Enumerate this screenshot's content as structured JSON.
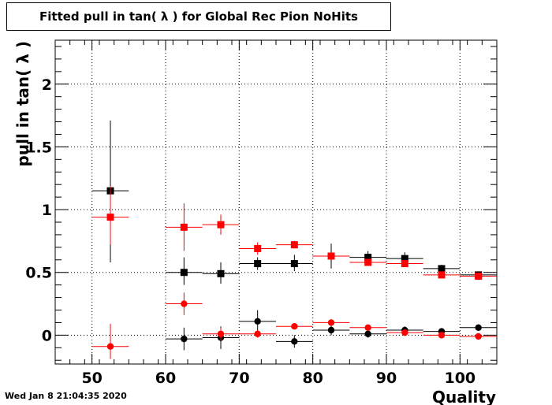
{
  "title": "Fitted pull in tan( λ ) for Global Rec Pion NoHits",
  "timestamp": "Wed Jan  8 21:04:35 2020",
  "chart_data": {
    "type": "scatter",
    "xlabel": "Quality",
    "ylabel": "pull in tan( λ )",
    "xlim": [
      45,
      105
    ],
    "ylim": [
      -0.23,
      2.35
    ],
    "x_ticks": [
      "50",
      "60",
      "70",
      "80",
      "90",
      "100"
    ],
    "y_ticks": [
      "0",
      "0.5",
      "1",
      "1.5",
      "2"
    ],
    "grid": true,
    "colors": {
      "black": "#000000",
      "red": "#ff0000"
    },
    "series": [
      {
        "color": "#000000",
        "marker": "square",
        "points": [
          {
            "x": 52.5,
            "y": 1.15,
            "xerr": 2.5,
            "yerr": [
              0.57,
              0.56
            ]
          },
          {
            "x": 62.5,
            "y": 0.5,
            "xerr": 2.5,
            "yerr": [
              0.1,
              0.12
            ]
          },
          {
            "x": 67.5,
            "y": 0.49,
            "xerr": 2.5,
            "yerr": [
              0.08,
              0.09
            ]
          },
          {
            "x": 72.5,
            "y": 0.57,
            "xerr": 2.5,
            "yerr": [
              0.05,
              0.05
            ]
          },
          {
            "x": 77.5,
            "y": 0.57,
            "xerr": 2.5,
            "yerr": [
              0.06,
              0.07
            ]
          },
          {
            "x": 82.5,
            "y": 0.63,
            "xerr": 2.5,
            "yerr": [
              0.1,
              0.1
            ]
          },
          {
            "x": 87.5,
            "y": 0.62,
            "xerr": 2.5,
            "yerr": [
              0.05,
              0.05
            ]
          },
          {
            "x": 92.5,
            "y": 0.61,
            "xerr": 2.5,
            "yerr": [
              0.04,
              0.05
            ]
          },
          {
            "x": 97.5,
            "y": 0.53,
            "xerr": 2.5,
            "yerr": [
              0.03,
              0.03
            ]
          },
          {
            "x": 102.5,
            "y": 0.48,
            "xerr": 2.5,
            "yerr": [
              0.02,
              0.02
            ]
          }
        ]
      },
      {
        "color": "#ff0000",
        "marker": "square",
        "points": [
          {
            "x": 52.5,
            "y": 0.94,
            "xerr": 2.5,
            "yerr": [
              0.22,
              0.25
            ]
          },
          {
            "x": 62.5,
            "y": 0.86,
            "xerr": 2.5,
            "yerr": [
              0.19,
              0.19
            ]
          },
          {
            "x": 67.5,
            "y": 0.88,
            "xerr": 2.5,
            "yerr": [
              0.08,
              0.08
            ]
          },
          {
            "x": 72.5,
            "y": 0.69,
            "xerr": 2.5,
            "yerr": [
              0.05,
              0.05
            ]
          },
          {
            "x": 77.5,
            "y": 0.72,
            "xerr": 2.5,
            "yerr": [
              0.03,
              0.03
            ]
          },
          {
            "x": 82.5,
            "y": 0.63,
            "xerr": 2.5,
            "yerr": [
              0.02,
              0.02
            ]
          },
          {
            "x": 87.5,
            "y": 0.58,
            "xerr": 2.5,
            "yerr": [
              0.02,
              0.02
            ]
          },
          {
            "x": 92.5,
            "y": 0.57,
            "xerr": 2.5,
            "yerr": [
              0.01,
              0.01
            ]
          },
          {
            "x": 97.5,
            "y": 0.48,
            "xerr": 2.5,
            "yerr": [
              0.01,
              0.01
            ]
          },
          {
            "x": 102.5,
            "y": 0.47,
            "xerr": 2.5,
            "yerr": [
              0.01,
              0.01
            ]
          }
        ]
      },
      {
        "color": "#000000",
        "marker": "circle",
        "points": [
          {
            "x": 62.5,
            "y": -0.03,
            "xerr": 2.5,
            "yerr": [
              0.09,
              0.09
            ]
          },
          {
            "x": 67.5,
            "y": -0.02,
            "xerr": 2.5,
            "yerr": [
              0.09,
              0.09
            ]
          },
          {
            "x": 72.5,
            "y": 0.11,
            "xerr": 2.5,
            "yerr": [
              0.09,
              0.09
            ]
          },
          {
            "x": 77.5,
            "y": -0.05,
            "xerr": 2.5,
            "yerr": [
              0.05,
              0.05
            ]
          },
          {
            "x": 82.5,
            "y": 0.04,
            "xerr": 2.5,
            "yerr": [
              0.04,
              0.04
            ]
          },
          {
            "x": 87.5,
            "y": 0.01,
            "xerr": 2.5,
            "yerr": [
              0.03,
              0.03
            ]
          },
          {
            "x": 92.5,
            "y": 0.04,
            "xerr": 2.5,
            "yerr": [
              0.03,
              0.03
            ]
          },
          {
            "x": 97.5,
            "y": 0.03,
            "xerr": 2.5,
            "yerr": [
              0.02,
              0.02
            ]
          },
          {
            "x": 102.5,
            "y": 0.06,
            "xerr": 2.5,
            "yerr": [
              0.02,
              0.02
            ]
          }
        ]
      },
      {
        "color": "#ff0000",
        "marker": "circle",
        "points": [
          {
            "x": 52.5,
            "y": -0.09,
            "xerr": 2.5,
            "yerr": [
              0.1,
              0.18
            ]
          },
          {
            "x": 62.5,
            "y": 0.25,
            "xerr": 2.5,
            "yerr": [
              0.09,
              0.09
            ]
          },
          {
            "x": 67.5,
            "y": 0.01,
            "xerr": 2.5,
            "yerr": [
              0.05,
              0.05
            ]
          },
          {
            "x": 72.5,
            "y": 0.01,
            "xerr": 2.5,
            "yerr": [
              0.03,
              0.03
            ]
          },
          {
            "x": 77.5,
            "y": 0.07,
            "xerr": 2.5,
            "yerr": [
              0.02,
              0.02
            ]
          },
          {
            "x": 82.5,
            "y": 0.1,
            "xerr": 2.5,
            "yerr": [
              0.01,
              0.01
            ]
          },
          {
            "x": 87.5,
            "y": 0.06,
            "xerr": 2.5,
            "yerr": [
              0.01,
              0.01
            ]
          },
          {
            "x": 92.5,
            "y": 0.02,
            "xerr": 2.5,
            "yerr": [
              0.01,
              0.01
            ]
          },
          {
            "x": 97.5,
            "y": 0.0,
            "xerr": 2.5,
            "yerr": [
              0.01,
              0.01
            ]
          },
          {
            "x": 102.5,
            "y": -0.01,
            "xerr": 2.5,
            "yerr": [
              0.01,
              0.01
            ]
          }
        ]
      }
    ]
  }
}
